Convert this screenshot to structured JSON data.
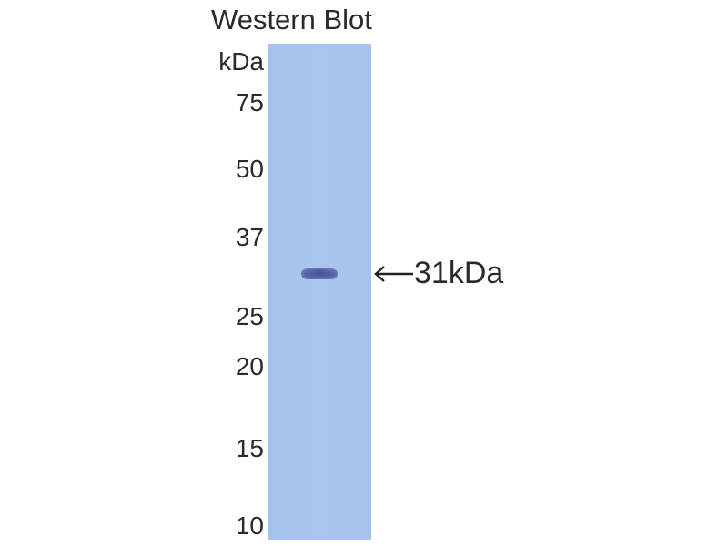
{
  "title": "Western Blot",
  "unit_label": "kDa",
  "markers": [
    {
      "label": "75"
    },
    {
      "label": "50"
    },
    {
      "label": "37"
    },
    {
      "label": "25"
    },
    {
      "label": "20"
    },
    {
      "label": "15"
    },
    {
      "label": "10"
    }
  ],
  "lane_color": "#a8c4ec",
  "band_color": "#4f579f",
  "band_annotation": "31kDa",
  "arrow_icon": "arrow-left-icon"
}
